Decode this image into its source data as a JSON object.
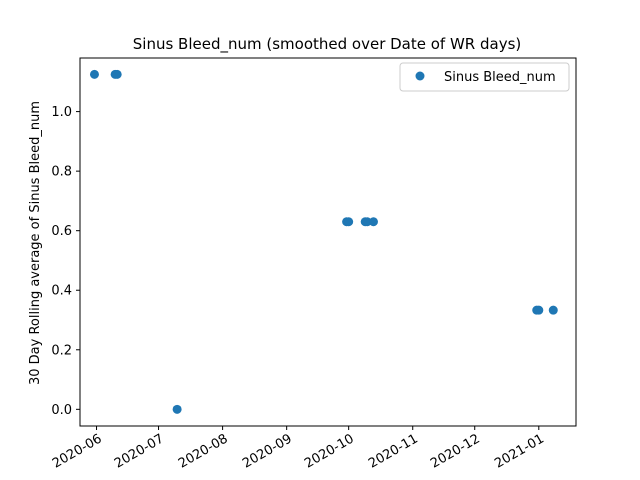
{
  "chart_data": {
    "type": "scatter",
    "title": "Sinus Bleed_num (smoothed over Date of WR days)",
    "xlabel": "",
    "ylabel": "30 Day Rolling average of Sinus Bleed_num",
    "x_ticks": [
      "2020-06",
      "2020-07",
      "2020-08",
      "2020-09",
      "2020-10",
      "2020-11",
      "2020-12",
      "2021-01"
    ],
    "y_ticks": [
      "0.0",
      "0.2",
      "0.4",
      "0.6",
      "0.8",
      "1.0"
    ],
    "ylim": [
      -0.056,
      1.18
    ],
    "xlim": [
      "2020-05-24",
      "2021-01-19"
    ],
    "legend_position": "top-right",
    "grid": false,
    "marker_color": "#1f77b4",
    "series": [
      {
        "name": "Sinus Bleed_num",
        "points": [
          {
            "x": "2020-05-31",
            "y": 1.125
          },
          {
            "x": "2020-06-10",
            "y": 1.125
          },
          {
            "x": "2020-06-11",
            "y": 1.125
          },
          {
            "x": "2020-07-10",
            "y": 0.0
          },
          {
            "x": "2020-09-30",
            "y": 0.63
          },
          {
            "x": "2020-10-01",
            "y": 0.63
          },
          {
            "x": "2020-10-09",
            "y": 0.63
          },
          {
            "x": "2020-10-10",
            "y": 0.63
          },
          {
            "x": "2020-10-13",
            "y": 0.63
          },
          {
            "x": "2020-12-31",
            "y": 0.333
          },
          {
            "x": "2021-01-01",
            "y": 0.333
          },
          {
            "x": "2021-01-08",
            "y": 0.333
          }
        ]
      }
    ]
  }
}
